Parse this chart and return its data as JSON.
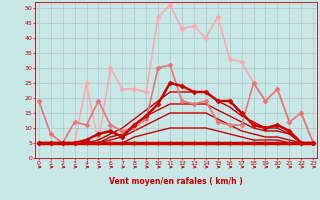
{
  "title": "",
  "xlabel": "Vent moyen/en rafales ( km/h )",
  "background_color": "#c8e8e8",
  "grid_color": "#b0c8c8",
  "text_color": "#cc0000",
  "x_ticks": [
    0,
    1,
    2,
    3,
    4,
    5,
    6,
    7,
    8,
    9,
    10,
    11,
    12,
    13,
    14,
    15,
    16,
    17,
    18,
    19,
    20,
    21,
    22,
    23
  ],
  "y_ticks": [
    0,
    5,
    10,
    15,
    20,
    25,
    30,
    35,
    40,
    45,
    50
  ],
  "ylim": [
    0,
    52
  ],
  "xlim": [
    -0.3,
    23.3
  ],
  "series": [
    {
      "x": [
        0,
        1,
        2,
        3,
        4,
        5,
        6,
        7,
        8,
        9,
        10,
        11,
        12,
        13,
        14,
        15,
        16,
        17,
        18,
        19,
        20,
        21,
        22,
        23
      ],
      "y": [
        5,
        5,
        5,
        5,
        5,
        5,
        5,
        5,
        5,
        5,
        5,
        5,
        5,
        5,
        5,
        5,
        5,
        5,
        5,
        5,
        5,
        5,
        5,
        5
      ],
      "color": "#cc0000",
      "linewidth": 2.5,
      "marker": "D",
      "markersize": 2,
      "alpha": 1.0,
      "zorder": 5
    },
    {
      "x": [
        0,
        1,
        2,
        3,
        4,
        5,
        6,
        7,
        8,
        9,
        10,
        11,
        12,
        13,
        14,
        15,
        16,
        17,
        18,
        19,
        20,
        21,
        22,
        23
      ],
      "y": [
        5,
        5,
        5,
        5,
        5,
        5,
        5,
        5,
        7,
        8,
        9,
        10,
        10,
        10,
        10,
        9,
        8,
        7,
        6,
        6,
        6,
        5,
        5,
        5
      ],
      "color": "#cc0000",
      "linewidth": 1.0,
      "marker": null,
      "markersize": 0,
      "alpha": 1.0,
      "zorder": 3
    },
    {
      "x": [
        0,
        1,
        2,
        3,
        4,
        5,
        6,
        7,
        8,
        9,
        10,
        11,
        12,
        13,
        14,
        15,
        16,
        17,
        18,
        19,
        20,
        21,
        22,
        23
      ],
      "y": [
        5,
        5,
        5,
        5,
        5,
        5,
        6,
        7,
        9,
        11,
        13,
        15,
        15,
        15,
        15,
        13,
        11,
        9,
        8,
        7,
        7,
        6,
        5,
        5
      ],
      "color": "#cc0000",
      "linewidth": 1.0,
      "marker": null,
      "markersize": 0,
      "alpha": 1.0,
      "zorder": 3
    },
    {
      "x": [
        0,
        1,
        2,
        3,
        4,
        5,
        6,
        7,
        8,
        9,
        10,
        11,
        12,
        13,
        14,
        15,
        16,
        17,
        18,
        19,
        20,
        21,
        22,
        23
      ],
      "y": [
        5,
        5,
        5,
        5,
        5,
        5,
        7,
        8,
        11,
        14,
        16,
        18,
        18,
        18,
        18,
        16,
        14,
        12,
        10,
        9,
        9,
        8,
        5,
        5
      ],
      "color": "#cc0000",
      "linewidth": 1.0,
      "marker": null,
      "markersize": 0,
      "alpha": 1.0,
      "zorder": 3
    },
    {
      "x": [
        0,
        1,
        2,
        3,
        4,
        5,
        6,
        7,
        8,
        9,
        10,
        11,
        12,
        13,
        14,
        15,
        16,
        17,
        18,
        19,
        20,
        21,
        22,
        23
      ],
      "y": [
        5,
        5,
        5,
        5,
        5,
        6,
        8,
        10,
        13,
        16,
        19,
        22,
        22,
        22,
        22,
        19,
        17,
        14,
        12,
        10,
        10,
        8,
        5,
        5
      ],
      "color": "#cc0000",
      "linewidth": 1.0,
      "marker": null,
      "markersize": 0,
      "alpha": 1.0,
      "zorder": 3
    },
    {
      "x": [
        0,
        1,
        2,
        3,
        4,
        5,
        6,
        7,
        8,
        9,
        10,
        11,
        12,
        13,
        14,
        15,
        16,
        17,
        18,
        19,
        20,
        21,
        22,
        23
      ],
      "y": [
        5,
        5,
        5,
        5,
        6,
        8,
        9,
        7,
        11,
        14,
        18,
        25,
        24,
        22,
        22,
        19,
        19,
        15,
        11,
        10,
        11,
        9,
        5,
        5
      ],
      "color": "#cc0000",
      "linewidth": 1.8,
      "marker": "D",
      "markersize": 2.5,
      "alpha": 1.0,
      "zorder": 4
    },
    {
      "x": [
        0,
        1,
        2,
        3,
        4,
        5,
        6,
        7,
        8,
        9,
        10,
        11,
        12,
        13,
        14,
        15,
        16,
        17,
        18,
        19,
        20,
        21,
        22,
        23
      ],
      "y": [
        19,
        8,
        5,
        12,
        11,
        19,
        11,
        9,
        10,
        13,
        30,
        31,
        19,
        18,
        19,
        12,
        11,
        11,
        25,
        19,
        23,
        12,
        15,
        5
      ],
      "color": "#e87878",
      "linewidth": 1.2,
      "marker": "D",
      "markersize": 2.5,
      "alpha": 1.0,
      "zorder": 3
    },
    {
      "x": [
        0,
        1,
        2,
        3,
        4,
        5,
        6,
        7,
        8,
        9,
        10,
        11,
        12,
        13,
        14,
        15,
        16,
        17,
        18,
        19,
        20,
        21,
        22,
        23
      ],
      "y": [
        5,
        5,
        5,
        5,
        25,
        5,
        30,
        23,
        23,
        22,
        47,
        51,
        43,
        44,
        40,
        47,
        33,
        32,
        25,
        19,
        23,
        12,
        15,
        5
      ],
      "color": "#ffaaaa",
      "linewidth": 1.2,
      "marker": "D",
      "markersize": 2.5,
      "alpha": 1.0,
      "zorder": 2
    }
  ],
  "arrow_color": "#cc0000"
}
